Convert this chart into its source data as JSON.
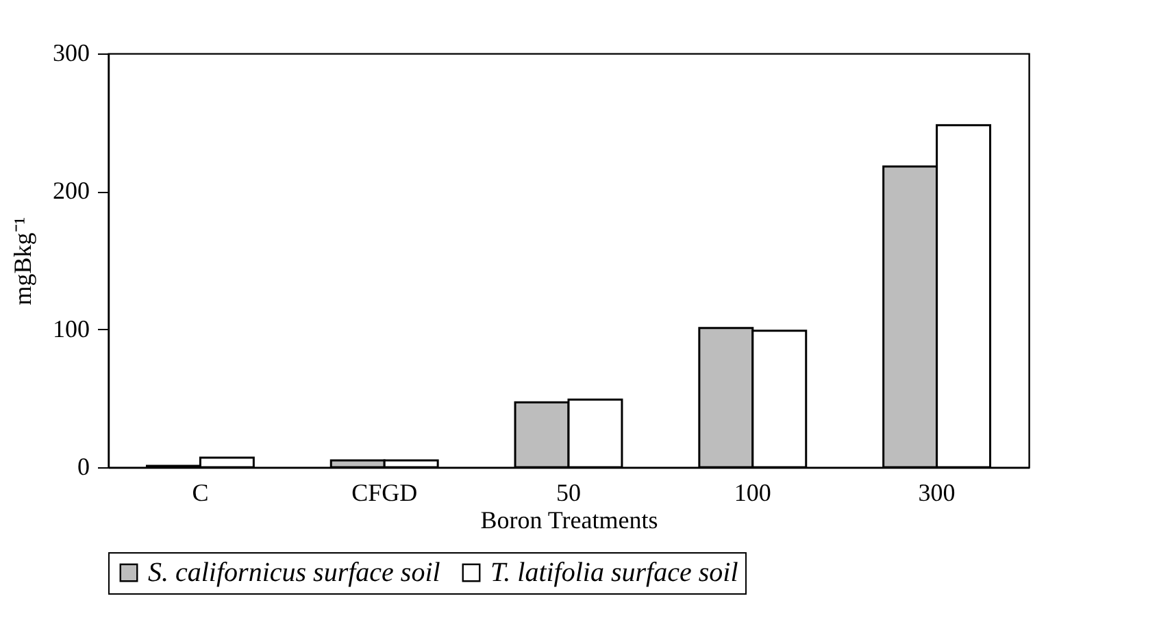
{
  "chart_data": {
    "type": "bar",
    "xlabel": "Boron Treatments",
    "ylabel": "mgBkg⁻¹",
    "categories": [
      "C",
      "CFGD",
      "50",
      "100",
      "300"
    ],
    "series": [
      {
        "name": "S. californicus surface soil",
        "color": "#bdbdbd",
        "values": [
          1,
          5,
          47,
          101,
          218
        ]
      },
      {
        "name": "T. latifolia surface soil",
        "color": "#ffffff",
        "values": [
          7,
          5,
          49,
          99,
          248
        ]
      }
    ],
    "ylim": [
      0,
      300
    ],
    "yticks": [
      0,
      100,
      200,
      300
    ],
    "grid": false,
    "legend": "bottom"
  }
}
